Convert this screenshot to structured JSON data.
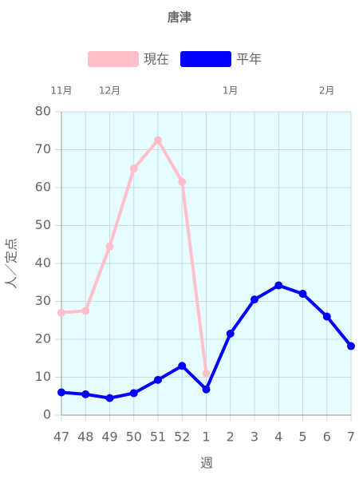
{
  "chart_data": {
    "type": "line",
    "title": "唐津",
    "categories": [
      "47",
      "48",
      "49",
      "50",
      "51",
      "52",
      "1",
      "2",
      "3",
      "4",
      "5",
      "6",
      "7"
    ],
    "top_labels": [
      "11月",
      null,
      "12月",
      null,
      null,
      null,
      null,
      "1月",
      null,
      null,
      null,
      "2月",
      null
    ],
    "series": [
      {
        "name": "現在",
        "color": "#ffc0cb",
        "values": [
          27,
          27.5,
          44.5,
          65,
          72.5,
          61.5,
          11,
          null,
          null,
          null,
          null,
          null,
          null
        ]
      },
      {
        "name": "平年",
        "color": "#0000ff",
        "values": [
          6,
          5.5,
          4.5,
          5.8,
          9.3,
          13,
          6.8,
          21.5,
          30.5,
          34.2,
          32,
          26,
          18.2
        ]
      }
    ],
    "x_label": "週",
    "y_label": "人／定点",
    "ylim": [
      0,
      80
    ],
    "yticks": [
      0,
      10,
      20,
      30,
      40,
      50,
      60,
      70,
      80
    ],
    "grid": true
  }
}
